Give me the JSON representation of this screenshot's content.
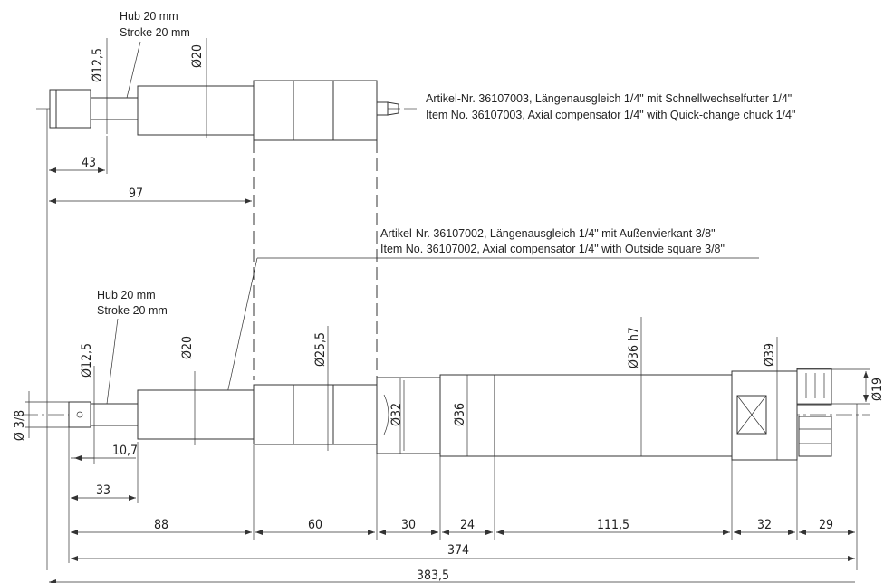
{
  "top_tool": {
    "stroke_note": {
      "line1": "Hub 20 mm",
      "line2": "Stroke 20 mm"
    },
    "dims": {
      "d_small": "Ø12,5",
      "d_shaft": "Ø20",
      "len_43": "43",
      "len_97": "97"
    },
    "label": {
      "de": "Artikel-Nr. 36107003, Längenausgleich 1/4\" mit Schnellwechselfutter 1/4\"",
      "en": "Item No. 36107003, Axial compensator 1/4\" with Quick-change chuck 1/4\""
    }
  },
  "bottom_tool": {
    "label": {
      "de": "Artikel-Nr. 36107002, Längenausgleich 1/4\" mit Außenvierkant 3/8\"",
      "en": "Item No. 36107002, Axial compensator 1/4\" with Outside square 3/8\""
    },
    "stroke_note": {
      "line1": "Hub 20 mm",
      "line2": "Stroke 20 mm"
    },
    "diameters": {
      "d_12_5": "Ø12,5",
      "d_20": "Ø20",
      "d_25_5": "Ø25,5",
      "d_32": "Ø32",
      "d_36": "Ø36",
      "d_36h7": "Ø36 h7",
      "d_39": "Ø39",
      "d_19": "Ø19",
      "square": "Ø 3/8"
    },
    "lengths": {
      "l_10_7": "10,7",
      "l_33": "33",
      "l_88": "88",
      "l_60": "60",
      "l_30": "30",
      "l_24": "24",
      "l_111_5": "111,5",
      "l_32": "32",
      "l_29": "29",
      "total_374": "374",
      "total_383_5": "383,5"
    }
  }
}
